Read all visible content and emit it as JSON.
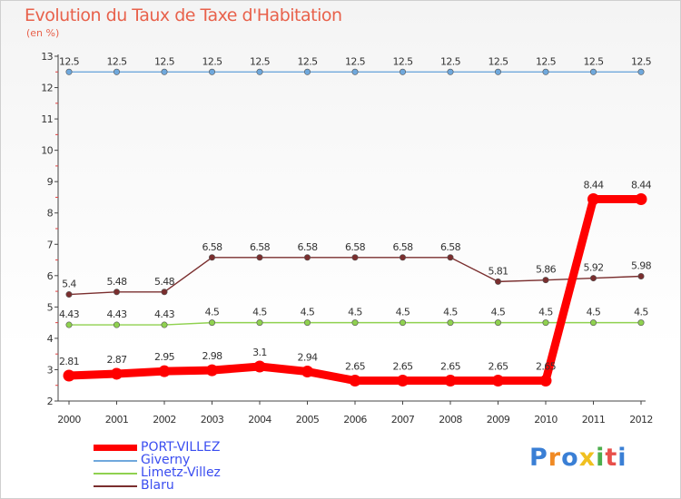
{
  "title": "Evolution du Taux de Taxe d'Habitation",
  "unit": "(en %)",
  "logo": [
    "P",
    "r",
    "o",
    "x",
    "i",
    "t",
    "i"
  ],
  "logo_colors": [
    "#3a7fd5",
    "#f08a24",
    "#3a7fd5",
    "#f0c020",
    "#4cae4c",
    "#e8504b",
    "#3a7fd5"
  ],
  "chart_data": {
    "type": "line",
    "title": "Evolution du Taux de Taxe d'Habitation",
    "ylabel": "(en %)",
    "x": [
      "2000",
      "2001",
      "2002",
      "2003",
      "2004",
      "2005",
      "2006",
      "2007",
      "2008",
      "2009",
      "2010",
      "2011",
      "2012"
    ],
    "yticks": [
      2,
      3,
      4,
      5,
      6,
      7,
      8,
      9,
      10,
      11,
      12,
      13
    ],
    "ylim": [
      2,
      13
    ],
    "series": [
      {
        "name": "PORT-VILLEZ",
        "color": "#ff0000",
        "thick": true,
        "values": [
          2.81,
          2.87,
          2.95,
          2.98,
          3.1,
          2.94,
          2.65,
          2.65,
          2.65,
          2.65,
          2.65,
          8.44,
          8.44
        ],
        "labels": [
          "2.81",
          "2.87",
          "2.95",
          "2.98",
          "3.1",
          "2.94",
          "2.65",
          "2.65",
          "2.65",
          "2.65",
          "2.65",
          "8.44",
          "8.44"
        ]
      },
      {
        "name": "Giverny",
        "color": "#6fa8dc",
        "thick": false,
        "values": [
          12.5,
          12.5,
          12.5,
          12.5,
          12.5,
          12.5,
          12.5,
          12.5,
          12.5,
          12.5,
          12.5,
          12.5,
          12.5
        ],
        "labels": [
          "12.5",
          "12.5",
          "12.5",
          "12.5",
          "12.5",
          "12.5",
          "12.5",
          "12.5",
          "12.5",
          "12.5",
          "12.5",
          "12.5",
          "12.5"
        ]
      },
      {
        "name": "Limetz-Villez",
        "color": "#8fd14f",
        "thick": false,
        "values": [
          4.43,
          4.43,
          4.43,
          4.5,
          4.5,
          4.5,
          4.5,
          4.5,
          4.5,
          4.5,
          4.5,
          4.5,
          4.5
        ],
        "labels": [
          "4.43",
          "4.43",
          "4.43",
          "4.5",
          "4.5",
          "4.5",
          "4.5",
          "4.5",
          "4.5",
          "4.5",
          "4.5",
          "4.5",
          "4.5"
        ]
      },
      {
        "name": "Blaru",
        "color": "#7a2e2e",
        "thick": false,
        "values": [
          5.4,
          5.48,
          5.48,
          6.58,
          6.58,
          6.58,
          6.58,
          6.58,
          6.58,
          5.81,
          5.86,
          5.92,
          5.98
        ],
        "labels": [
          "5.4",
          "5.48",
          "5.48",
          "6.58",
          "6.58",
          "6.58",
          "6.58",
          "6.58",
          "6.58",
          "5.81",
          "5.86",
          "5.92",
          "5.98"
        ]
      }
    ]
  }
}
